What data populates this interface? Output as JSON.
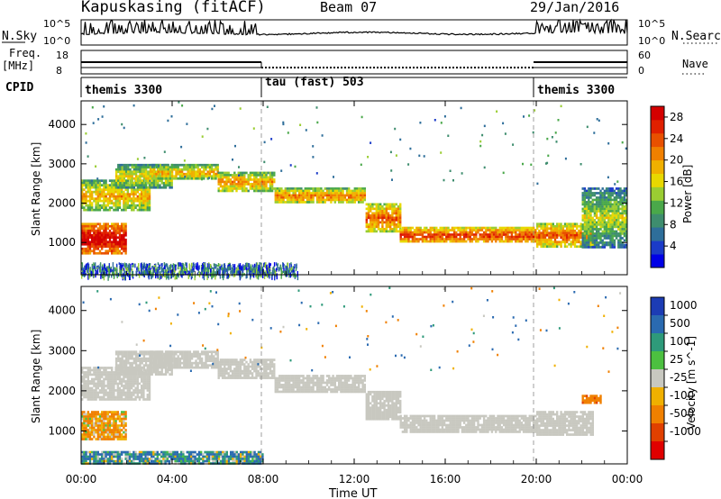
{
  "header": {
    "station": "Kapuskasing (fitACF)",
    "beam": "Beam 07",
    "date": "29/Jan/2016"
  },
  "top_panels": {
    "nsky_label": "N.Sky",
    "nsky_ticks": [
      "10^5",
      "10^0"
    ],
    "nsearch_label": "N.Search",
    "nsearch_ticks": [
      "10^5",
      "10^0"
    ],
    "freq_label": "Freq.",
    "freq_unit": "[MHz]",
    "freq_ticks": [
      "18",
      "8"
    ],
    "nave_label": "Nave",
    "nave_ticks": [
      "60",
      "0"
    ],
    "cpid_label": "CPID",
    "cpid_segments": [
      "themis 3300",
      "tau (fast) 503",
      "themis 3300"
    ]
  },
  "power_panel": {
    "ylabel": "Slant Range [km]",
    "yticks": [
      "1000",
      "2000",
      "3000",
      "4000"
    ],
    "colorbar_label": "Power [dB]",
    "colorbar_ticks": [
      "4",
      "8",
      "12",
      "16",
      "20",
      "24",
      "28"
    ],
    "colors": [
      "#0000e6",
      "#1b3bc8",
      "#2e6e9a",
      "#3e8d6e",
      "#4aa84a",
      "#9acd32",
      "#e8d800",
      "#f0b000",
      "#f08000",
      "#e85000",
      "#e02000",
      "#d40000"
    ]
  },
  "velocity_panel": {
    "ylabel": "Slant Range [km]",
    "yticks": [
      "1000",
      "2000",
      "3000",
      "4000"
    ],
    "colorbar_label": "Velocity [m s^-1]",
    "colorbar_ticks": [
      "1000",
      "500",
      "100",
      "25",
      "-25",
      "-100",
      "-500",
      "-1000"
    ],
    "colors": [
      "#1c3cb4",
      "#2a6ab0",
      "#2e9a7a",
      "#4cc040",
      "#c8c8c0",
      "#f0b000",
      "#f08000",
      "#e04000",
      "#e00000"
    ]
  },
  "xaxis": {
    "label": "Time UT",
    "ticks": [
      "00:00",
      "04:00",
      "08:00",
      "12:00",
      "16:00",
      "20:00",
      "00:00"
    ]
  },
  "chart_data": [
    {
      "type": "heatmap",
      "name": "power",
      "xlabel": "Time UT",
      "ylabel": "Slant Range [km]",
      "xlim_hours": [
        0,
        24
      ],
      "ylim_km": [
        180,
        4600
      ],
      "zlabel": "Power [dB]",
      "zlim": [
        0,
        30
      ],
      "echo_bands": [
        {
          "t0": 0.0,
          "t1": 2.0,
          "r0": 700,
          "r1": 1500,
          "power": 24
        },
        {
          "t0": 0.0,
          "t1": 3.0,
          "r0": 1800,
          "r1": 2600,
          "power": 14
        },
        {
          "t0": 1.5,
          "t1": 4.0,
          "r0": 2400,
          "r1": 3000,
          "power": 12
        },
        {
          "t0": 3.0,
          "t1": 6.0,
          "r0": 2600,
          "r1": 3000,
          "power": 14
        },
        {
          "t0": 6.0,
          "t1": 8.5,
          "r0": 2300,
          "r1": 2800,
          "power": 15
        },
        {
          "t0": 8.5,
          "t1": 12.5,
          "r0": 2000,
          "r1": 2400,
          "power": 16
        },
        {
          "t0": 12.5,
          "t1": 14.0,
          "r0": 1300,
          "r1": 2000,
          "power": 18
        },
        {
          "t0": 14.0,
          "t1": 20.0,
          "r0": 1000,
          "r1": 1400,
          "power": 20
        },
        {
          "t0": 20.0,
          "t1": 22.5,
          "r0": 900,
          "r1": 1500,
          "power": 18
        },
        {
          "t0": 22.0,
          "t1": 24.0,
          "r0": 900,
          "r1": 2400,
          "power": 10
        }
      ]
    },
    {
      "type": "heatmap",
      "name": "velocity",
      "xlabel": "Time UT",
      "ylabel": "Slant Range [km]",
      "xlim_hours": [
        0,
        24
      ],
      "ylim_km": [
        180,
        4600
      ],
      "zlabel": "Velocity [m s^-1]",
      "zlim": [
        -1000,
        1000
      ],
      "echo_bands": [
        {
          "t0": 0.0,
          "t1": 2.0,
          "r0": 800,
          "r1": 1500,
          "velocity": -100
        },
        {
          "t0": 0.0,
          "t1": 3.0,
          "r0": 1800,
          "r1": 2600,
          "velocity": 0
        },
        {
          "t0": 1.5,
          "t1": 4.0,
          "r0": 2400,
          "r1": 3000,
          "velocity": 0
        },
        {
          "t0": 3.0,
          "t1": 6.0,
          "r0": 2600,
          "r1": 3000,
          "velocity": 0
        },
        {
          "t0": 6.0,
          "t1": 8.5,
          "r0": 2300,
          "r1": 2800,
          "velocity": 0
        },
        {
          "t0": 8.5,
          "t1": 12.5,
          "r0": 2000,
          "r1": 2400,
          "velocity": 0
        },
        {
          "t0": 12.5,
          "t1": 14.0,
          "r0": 1300,
          "r1": 2000,
          "velocity": 0
        },
        {
          "t0": 14.0,
          "t1": 20.0,
          "r0": 1000,
          "r1": 1400,
          "velocity": 0
        },
        {
          "t0": 20.0,
          "t1": 22.5,
          "r0": 900,
          "r1": 1500,
          "velocity": 0
        },
        {
          "t0": 22.0,
          "t1": 22.8,
          "r0": 1700,
          "r1": 1900,
          "velocity": -400
        },
        {
          "t0": 0.0,
          "t1": 8.0,
          "r0": 180,
          "r1": 500,
          "velocity": 80
        }
      ]
    }
  ]
}
